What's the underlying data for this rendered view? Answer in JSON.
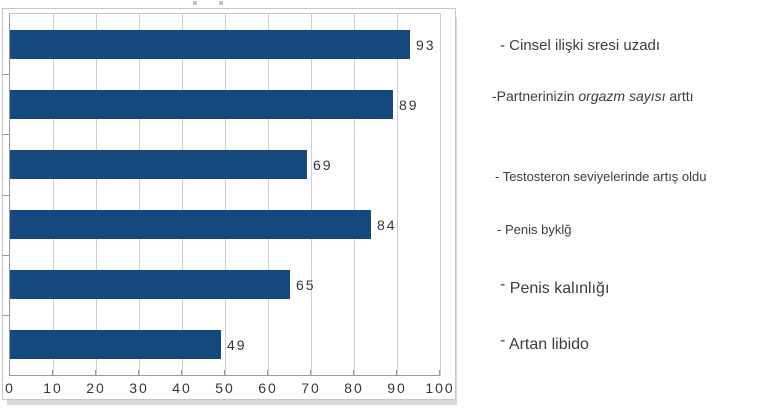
{
  "chart_data": {
    "type": "bar",
    "orientation": "horizontal",
    "categories": [
      "Cinsel ilişki sresi uzadı",
      "Partnerinizin orgazm sayısı arttı",
      "Testosteron seviyelerinde artış oldu",
      "Penis byklğ",
      "Penis kalınlığı",
      "Artan libido"
    ],
    "values": [
      93,
      89,
      69,
      84,
      65,
      49
    ],
    "value_labels": [
      "93",
      "89",
      "69",
      "84",
      "65",
      "49"
    ],
    "xlim": [
      0,
      100
    ],
    "x_ticks": [
      0,
      10,
      20,
      30,
      40,
      50,
      60,
      70,
      80,
      90,
      100
    ],
    "grid": "vertical",
    "legend_position": "right",
    "bar_color": "#15497D",
    "gridline_color": "#cdcdcd",
    "axis_color": "#9a9a9a",
    "label_color": "#363636"
  },
  "legend": {
    "items": [
      {
        "dash": "-",
        "segments": [
          {
            "t": " Cinsel ilişki sresi uzadı"
          }
        ]
      },
      {
        "dash": "-",
        "segments": [
          {
            "t": "Partnerinizin "
          },
          {
            "t": "orgazm sayısı",
            "i": true
          },
          {
            "t": " arttı"
          }
        ]
      },
      {
        "dash": "-",
        "segments": [
          {
            "t": " Testosteron seviyelerinde artış oldu"
          }
        ]
      },
      {
        "dash": "-",
        "segments": [
          {
            "t": " Penis byklğ"
          }
        ]
      },
      {
        "dash": "-",
        "segments": [
          {
            "t": " Penis kalınlığı"
          }
        ]
      },
      {
        "dash": "-",
        "segments": [
          {
            "t": " Artan libido"
          }
        ]
      }
    ]
  }
}
